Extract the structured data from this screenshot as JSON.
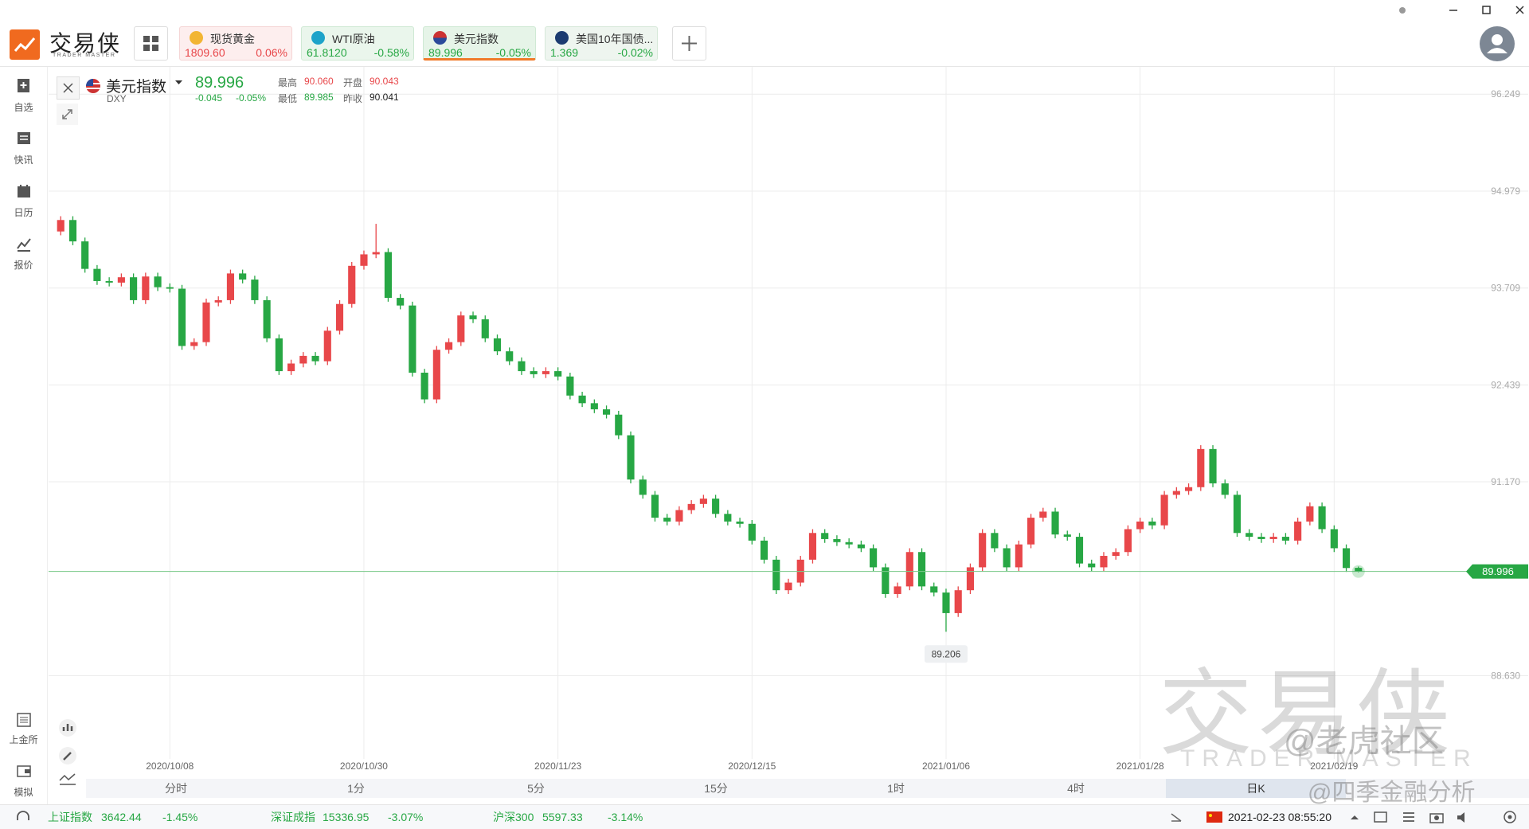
{
  "app": {
    "logo": {
      "cn": "交易侠",
      "en": "TRADER MASTER"
    },
    "tabs": [
      {
        "name": "现货黄金",
        "price": "1809.60",
        "change": "0.06%"
      },
      {
        "name": "WTI原油",
        "price": "61.8120",
        "change": "-0.58%"
      },
      {
        "name": "美元指数",
        "price": "89.996",
        "change": "-0.05%"
      },
      {
        "name": "美国10年国债...",
        "price": "1.369",
        "change": "-0.02%"
      }
    ],
    "sidebar": [
      "自选",
      "快讯",
      "日历",
      "报价"
    ],
    "sidebar_bottom": [
      "上金所",
      "模拟"
    ],
    "quote": {
      "name": "美元指数",
      "code": "DXY",
      "price": "89.996",
      "change": "-0.045",
      "change_pct": "-0.05%",
      "stats": [
        {
          "label": "最高",
          "value": "90.060"
        },
        {
          "label": "开盘",
          "value": "90.043"
        },
        {
          "label": "最低",
          "value": "89.985"
        },
        {
          "label": "昨收",
          "value": "90.041"
        }
      ]
    },
    "timeframes": [
      "分时",
      "1分",
      "5分",
      "15分",
      "1时",
      "4时",
      "日K"
    ],
    "status": {
      "indices": [
        {
          "name": "上证指数",
          "value": "3642.44",
          "change": "-1.45%"
        },
        {
          "name": "深证成指",
          "value": "15336.95",
          "change": "-3.07%"
        },
        {
          "name": "沪深300",
          "value": "5597.33",
          "change": "-3.14%"
        }
      ],
      "datetime": "2021-02-23 08:55:20"
    },
    "watermark": {
      "cn": "交易侠",
      "en": "TRADER MASTER",
      "credits": [
        "@老虎社区",
        "@四季金融分析"
      ]
    }
  },
  "chart_data": {
    "type": "candlestick",
    "up_color": "#e8474a",
    "down_color": "#27a744",
    "grid": true,
    "xlim": [
      -1,
      121
    ],
    "ylim": [
      87.54,
      96.46
    ],
    "yticks": [
      {
        "value": 96.249,
        "label": "96.249"
      },
      {
        "value": 94.979,
        "label": "94.979"
      },
      {
        "value": 93.709,
        "label": "93.709"
      },
      {
        "value": 92.439,
        "label": "92.439"
      },
      {
        "value": 91.17,
        "label": "91.170"
      },
      {
        "value": 88.63,
        "label": "88.630"
      }
    ],
    "xticks": [
      {
        "value": 9,
        "label": "2020/10/08"
      },
      {
        "value": 25,
        "label": "2020/10/30"
      },
      {
        "value": 41,
        "label": "2020/11/23"
      },
      {
        "value": 57,
        "label": "2020/12/15"
      },
      {
        "value": 73,
        "label": "2021/01/06"
      },
      {
        "value": 89,
        "label": "2021/01/28"
      },
      {
        "value": 105,
        "label": "2021/02/19"
      }
    ],
    "open": [
      94.45,
      94.6,
      94.32,
      93.96,
      93.8,
      93.78,
      93.85,
      93.55,
      93.86,
      93.72,
      93.7,
      92.95,
      93.0,
      93.52,
      93.55,
      93.9,
      93.82,
      93.55,
      93.05,
      92.62,
      92.72,
      92.82,
      92.75,
      93.15,
      93.5,
      94.0,
      94.15,
      94.18,
      93.58,
      93.48,
      92.6,
      92.25,
      92.9,
      93.0,
      93.35,
      93.3,
      93.05,
      92.88,
      92.75,
      92.62,
      92.58,
      92.62,
      92.55,
      92.3,
      92.2,
      92.12,
      92.05,
      91.78,
      91.2,
      91.0,
      90.7,
      90.65,
      90.8,
      90.88,
      90.95,
      90.75,
      90.65,
      90.62,
      90.4,
      90.15,
      89.75,
      89.85,
      90.15,
      90.5,
      90.42,
      90.38,
      90.35,
      90.3,
      90.05,
      89.7,
      89.8,
      90.25,
      89.8,
      89.72,
      89.45,
      89.75,
      90.05,
      90.5,
      90.3,
      90.05,
      90.35,
      90.7,
      90.78,
      90.48,
      90.45,
      90.1,
      90.05,
      90.2,
      90.25,
      90.55,
      90.65,
      90.6,
      91.0,
      91.05,
      91.1,
      91.6,
      91.15,
      91.0,
      90.5,
      90.45,
      90.42,
      90.45,
      90.4,
      90.65,
      90.85,
      90.55,
      90.3,
      90.043
    ],
    "high": [
      94.65,
      94.65,
      94.37,
      94.01,
      93.85,
      93.9,
      93.9,
      93.91,
      93.91,
      93.77,
      93.75,
      93.05,
      93.57,
      93.6,
      93.95,
      93.95,
      93.87,
      93.6,
      93.1,
      92.77,
      92.87,
      92.87,
      93.2,
      93.55,
      94.05,
      94.2,
      94.55,
      94.23,
      93.63,
      93.53,
      92.65,
      92.95,
      93.05,
      93.4,
      93.4,
      93.35,
      93.1,
      92.93,
      92.8,
      92.67,
      92.67,
      92.67,
      92.6,
      92.35,
      92.25,
      92.17,
      92.1,
      91.83,
      91.25,
      91.05,
      90.75,
      90.85,
      90.93,
      91.0,
      91.0,
      90.8,
      90.7,
      90.67,
      90.45,
      90.2,
      89.9,
      90.2,
      90.55,
      90.55,
      90.47,
      90.43,
      90.4,
      90.35,
      90.1,
      89.85,
      90.3,
      90.3,
      89.85,
      89.77,
      89.8,
      90.1,
      90.55,
      90.55,
      90.35,
      90.4,
      90.75,
      90.83,
      90.83,
      90.53,
      90.5,
      90.15,
      90.25,
      90.3,
      90.6,
      90.7,
      90.7,
      91.05,
      91.1,
      91.15,
      91.65,
      91.65,
      91.2,
      91.05,
      90.55,
      90.5,
      90.5,
      90.5,
      90.7,
      90.9,
      90.9,
      90.6,
      90.35,
      90.06
    ],
    "low": [
      94.4,
      94.27,
      93.91,
      93.75,
      93.73,
      93.73,
      93.5,
      93.5,
      93.67,
      93.65,
      92.9,
      92.9,
      92.95,
      93.47,
      93.5,
      93.77,
      93.5,
      93.0,
      92.57,
      92.57,
      92.67,
      92.7,
      92.7,
      93.1,
      93.45,
      93.95,
      94.1,
      93.53,
      93.43,
      92.55,
      92.2,
      92.2,
      92.85,
      92.95,
      93.25,
      93.0,
      92.83,
      92.7,
      92.57,
      92.53,
      92.53,
      92.5,
      92.25,
      92.15,
      92.07,
      92.0,
      91.73,
      91.15,
      90.95,
      90.65,
      90.6,
      90.6,
      90.75,
      90.83,
      90.7,
      90.6,
      90.57,
      90.35,
      90.1,
      89.7,
      89.7,
      89.8,
      90.1,
      90.37,
      90.33,
      90.3,
      90.25,
      90.0,
      89.65,
      89.65,
      89.75,
      89.75,
      89.67,
      89.206,
      89.4,
      89.7,
      90.0,
      90.25,
      90.0,
      90.0,
      90.3,
      90.65,
      90.43,
      90.4,
      90.05,
      90.0,
      90.0,
      90.15,
      90.2,
      90.5,
      90.55,
      90.55,
      90.95,
      91.0,
      91.05,
      91.1,
      90.95,
      90.45,
      90.4,
      90.37,
      90.37,
      90.35,
      90.35,
      90.6,
      90.5,
      90.25,
      89.99,
      89.985
    ],
    "close": [
      94.6,
      94.32,
      93.96,
      93.8,
      93.78,
      93.85,
      93.55,
      93.86,
      93.72,
      93.7,
      92.95,
      93.0,
      93.52,
      93.55,
      93.9,
      93.82,
      93.55,
      93.05,
      92.62,
      92.72,
      92.82,
      92.75,
      93.15,
      93.5,
      94.0,
      94.15,
      94.18,
      93.58,
      93.48,
      92.6,
      92.25,
      92.9,
      93.0,
      93.35,
      93.3,
      93.05,
      92.88,
      92.75,
      92.62,
      92.58,
      92.62,
      92.55,
      92.3,
      92.2,
      92.12,
      92.05,
      91.78,
      91.2,
      91.0,
      90.7,
      90.65,
      90.8,
      90.88,
      90.95,
      90.75,
      90.65,
      90.62,
      90.4,
      90.15,
      89.75,
      89.85,
      90.15,
      90.5,
      90.42,
      90.38,
      90.35,
      90.3,
      90.05,
      89.7,
      89.8,
      90.25,
      89.8,
      89.72,
      89.45,
      89.75,
      90.05,
      90.5,
      90.3,
      90.05,
      90.35,
      90.7,
      90.78,
      90.48,
      90.45,
      90.1,
      90.05,
      90.2,
      90.25,
      90.55,
      90.65,
      90.6,
      91.0,
      91.05,
      91.1,
      91.6,
      91.15,
      91.0,
      90.5,
      90.45,
      90.42,
      90.45,
      90.4,
      90.65,
      90.85,
      90.55,
      90.3,
      90.041,
      89.996
    ]
  }
}
